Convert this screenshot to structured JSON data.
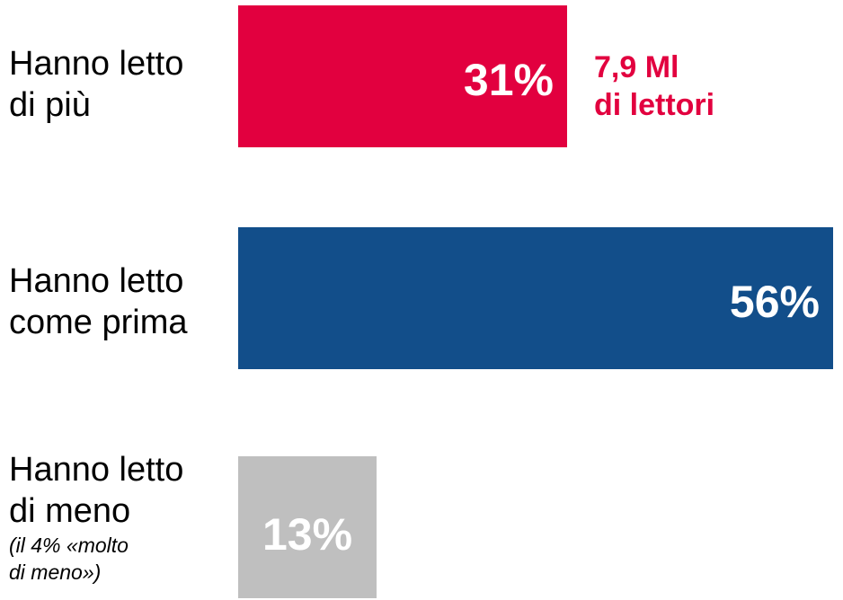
{
  "chart_data": {
    "type": "bar",
    "orientation": "horizontal",
    "categories": [
      {
        "lines": [
          "Hanno letto",
          "di più"
        ],
        "note": []
      },
      {
        "lines": [
          "Hanno letto",
          "come prima"
        ],
        "note": []
      },
      {
        "lines": [
          "Hanno letto",
          "di meno"
        ],
        "note": [
          "(il 4% «molto",
          "di meno»)"
        ]
      }
    ],
    "values": [
      31,
      56,
      13
    ],
    "value_labels": [
      "31%",
      "56%",
      "13%"
    ],
    "colors": [
      "#e2003f",
      "#124e8a",
      "#bfbfbf"
    ],
    "value_label_colors": [
      "#ffffff",
      "#ffffff",
      "#ffffff"
    ],
    "callout": {
      "category_index": 0,
      "lines": [
        "7,9 Ml",
        "di lettori"
      ],
      "color": "#e2003f"
    },
    "xlim": [
      0,
      56
    ],
    "title": "",
    "xlabel": "",
    "ylabel": "",
    "grid": false,
    "legend": "none"
  }
}
